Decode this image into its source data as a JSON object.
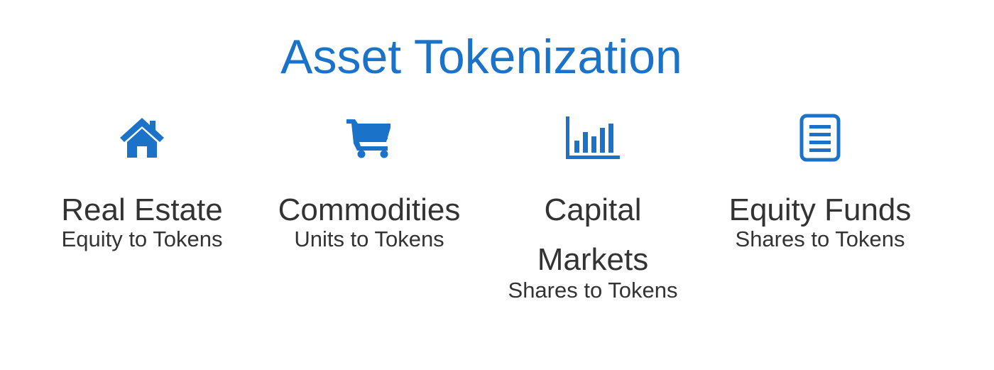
{
  "title": "Asset Tokenization",
  "accent_color": "#1a73c8",
  "categories": [
    {
      "icon": "house-icon",
      "name": "Real Estate",
      "subtitle": "Equity to Tokens"
    },
    {
      "icon": "shopping-cart-icon",
      "name": "Commodities",
      "subtitle": "Units to Tokens"
    },
    {
      "icon": "bar-chart-icon",
      "name_line1": "Capital",
      "name_line2": "Markets",
      "subtitle": "Shares to Tokens"
    },
    {
      "icon": "document-icon",
      "name": "Equity Funds",
      "subtitle": "Shares to Tokens"
    }
  ]
}
